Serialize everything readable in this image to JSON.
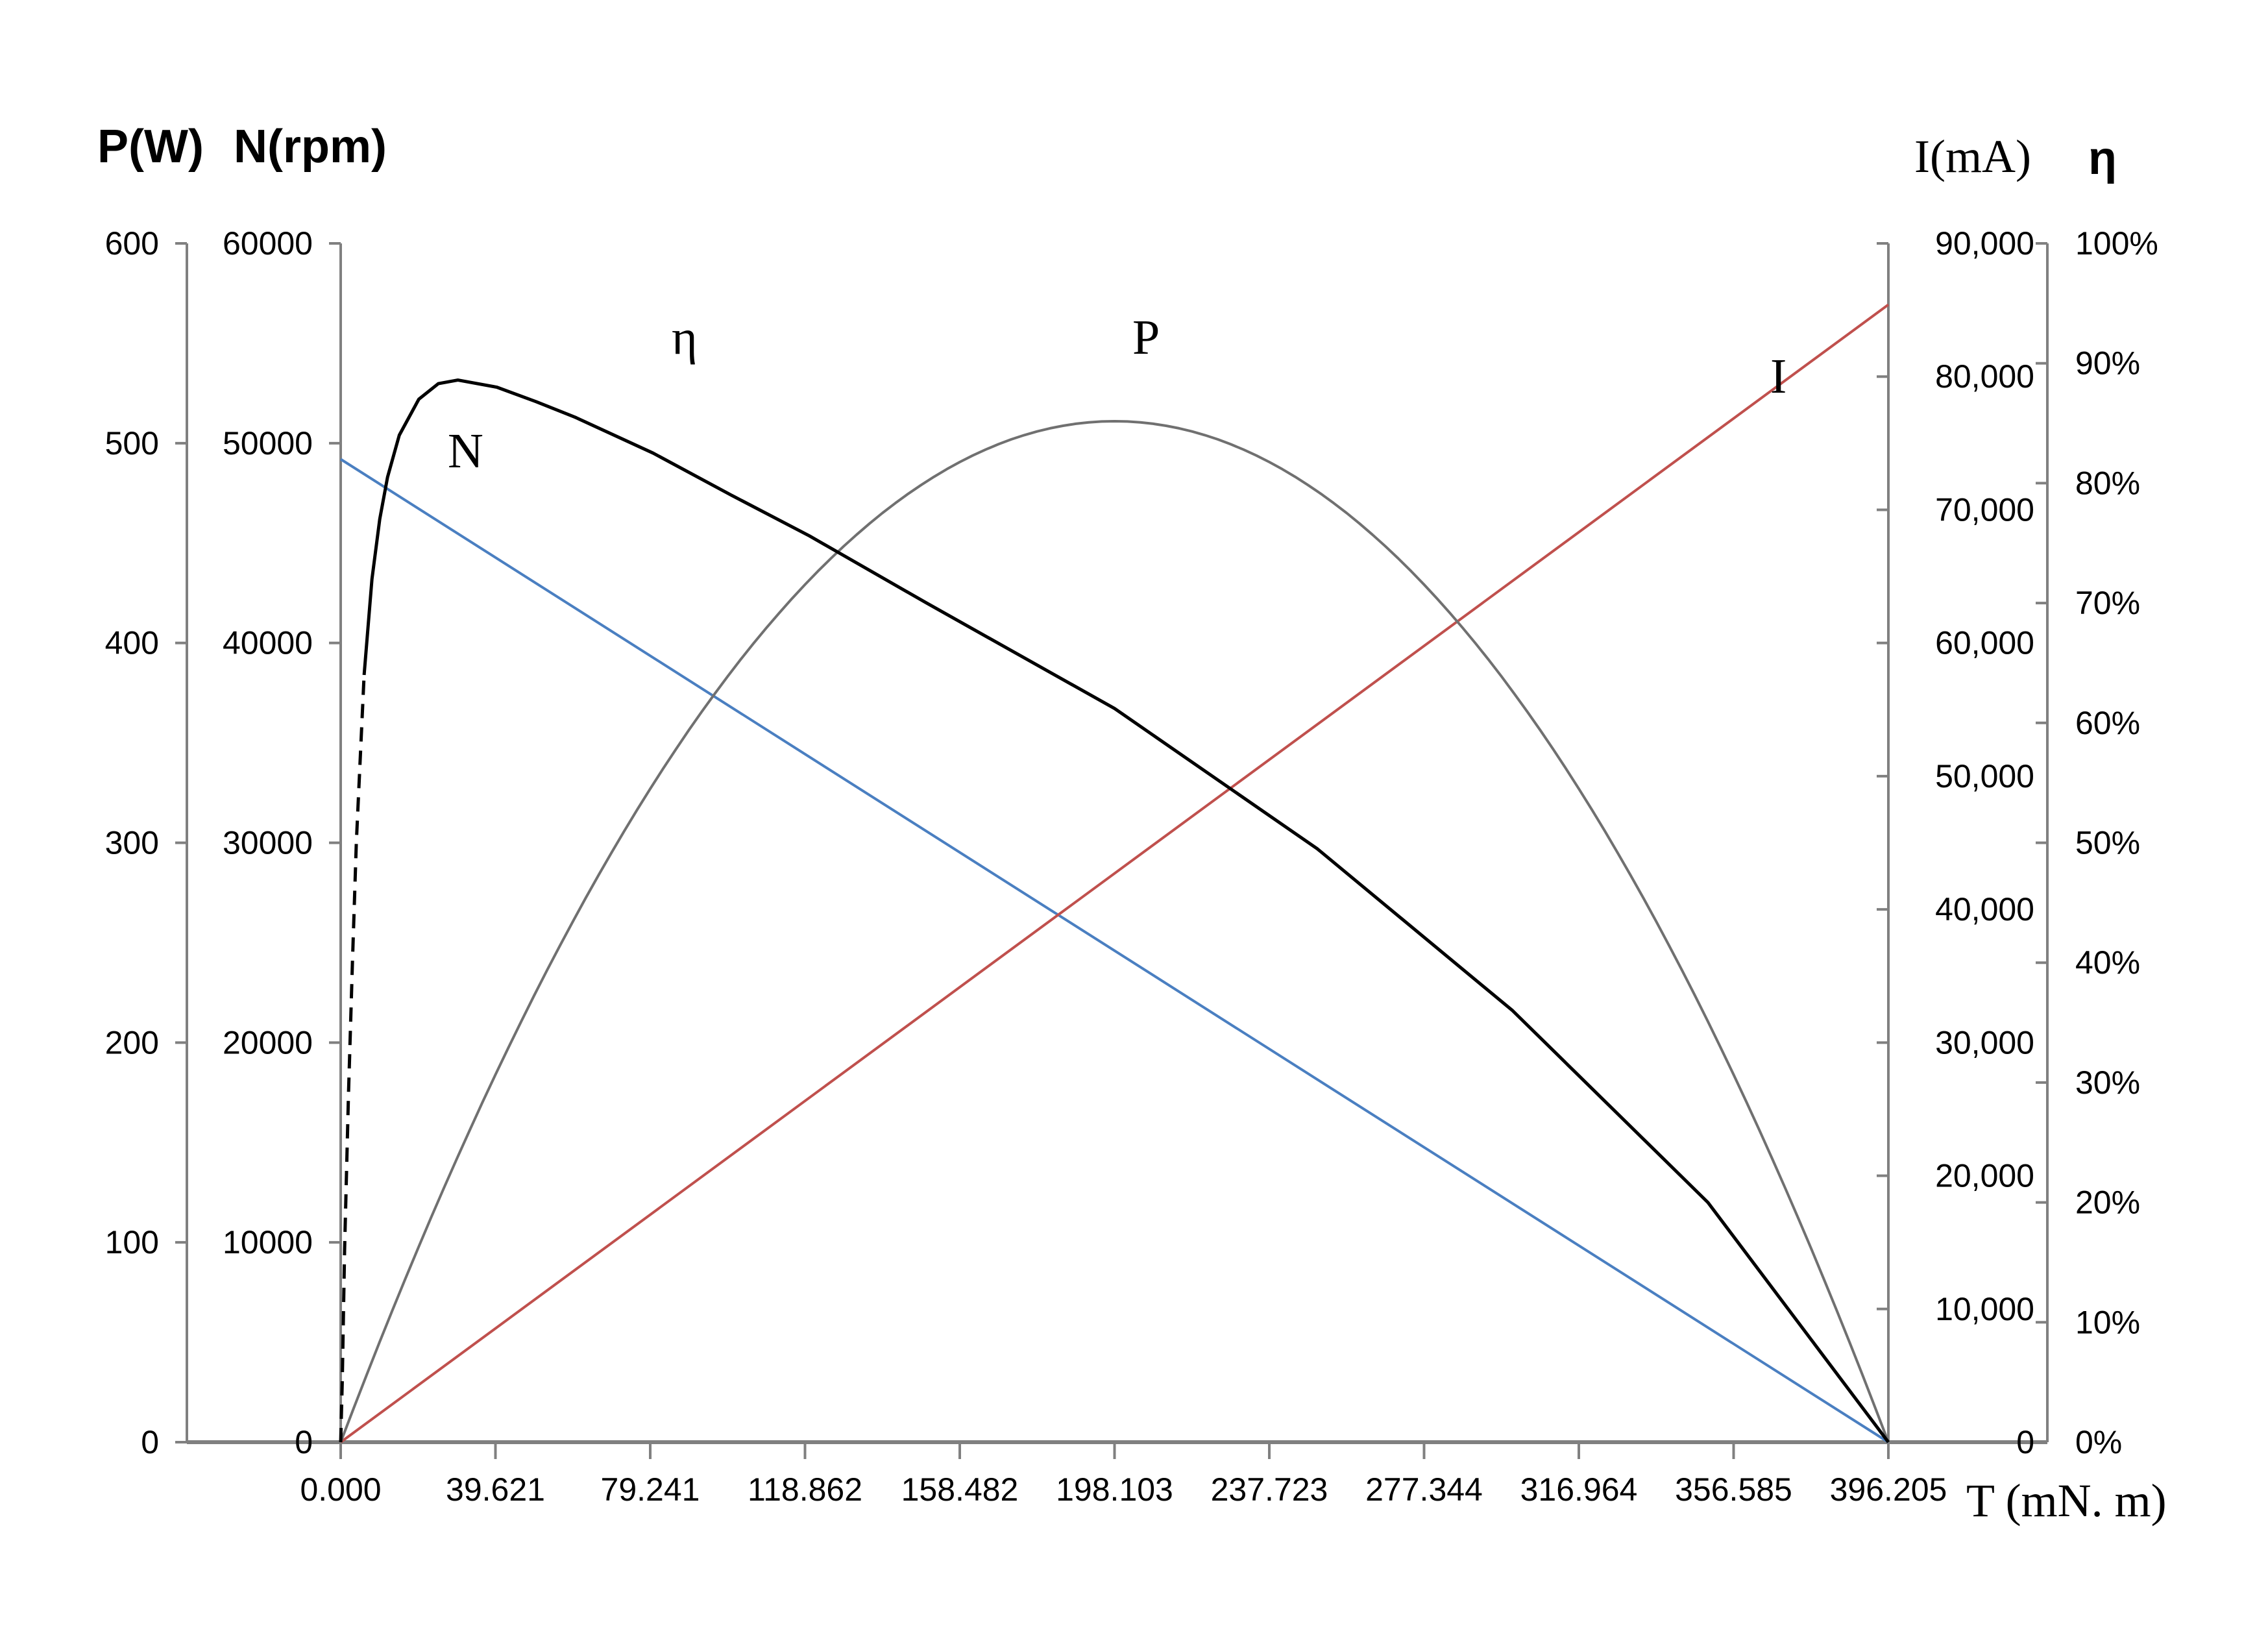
{
  "chart_data": {
    "type": "line",
    "x_title": "T (mN. m)",
    "x_ticks": [
      0.0,
      39.621,
      79.241,
      118.862,
      158.482,
      198.103,
      237.723,
      277.344,
      316.964,
      356.585,
      396.205
    ],
    "x_tick_labels": [
      "0.000",
      "39.621",
      "79.241",
      "118.862",
      "158.482",
      "198.103",
      "237.723",
      "277.344",
      "316.964",
      "356.585",
      "396.205"
    ],
    "xlim": [
      0,
      396.205
    ],
    "axes": {
      "power": {
        "title": "P(W)",
        "range": [
          0,
          600
        ],
        "ticks": [
          "0",
          "100",
          "200",
          "300",
          "400",
          "500",
          "600"
        ]
      },
      "speed": {
        "title": "N(rpm)",
        "title_bold": "N",
        "title_unit": "(rpm)",
        "range": [
          0,
          60000
        ],
        "ticks": [
          "0",
          "10000",
          "20000",
          "30000",
          "40000",
          "50000",
          "60000"
        ]
      },
      "current": {
        "title": "I(mA)",
        "range": [
          0,
          90000
        ],
        "ticks": [
          "0",
          "10,000",
          "20,000",
          "30,000",
          "40,000",
          "50,000",
          "60,000",
          "70,000",
          "80,000",
          "90,000"
        ]
      },
      "efficiency": {
        "title": "η",
        "range": [
          0,
          100
        ],
        "ticks": [
          "0%",
          "10%",
          "20%",
          "30%",
          "40%",
          "50%",
          "60%",
          "70%",
          "80%",
          "90%",
          "100%"
        ]
      }
    },
    "series": [
      {
        "name": "N",
        "axis": "speed",
        "color": "#4a7fc1",
        "x": [
          0,
          396.205
        ],
        "y": [
          49200,
          0
        ]
      },
      {
        "name": "I",
        "axis": "current",
        "color": "#c0504d",
        "x": [
          0,
          396.205
        ],
        "y": [
          0,
          85400
        ]
      },
      {
        "name": "P",
        "axis": "power",
        "color": "#707070",
        "curve": "parabola",
        "peak": 511,
        "x": [
          0,
          396.205
        ],
        "y": [
          0,
          0
        ]
      },
      {
        "name": "η",
        "axis": "efficiency",
        "color": "#000000",
        "x": [
          0,
          0.4,
          1,
          2,
          3,
          4,
          6,
          8,
          10,
          12,
          15,
          20,
          25,
          30,
          40,
          50,
          60,
          80,
          100,
          120,
          150,
          198.103,
          250,
          300,
          350,
          396.205
        ],
        "y": [
          0,
          5,
          16,
          29,
          40,
          50,
          64,
          72,
          77,
          80.5,
          84,
          87,
          88.3,
          88.6,
          88,
          86.8,
          85.5,
          82.5,
          79,
          75.6,
          70,
          61.2,
          49.5,
          36,
          20,
          0
        ],
        "dashed_below_x": 6
      }
    ],
    "curve_labels": [
      "N",
      "η",
      "P",
      "I"
    ]
  }
}
